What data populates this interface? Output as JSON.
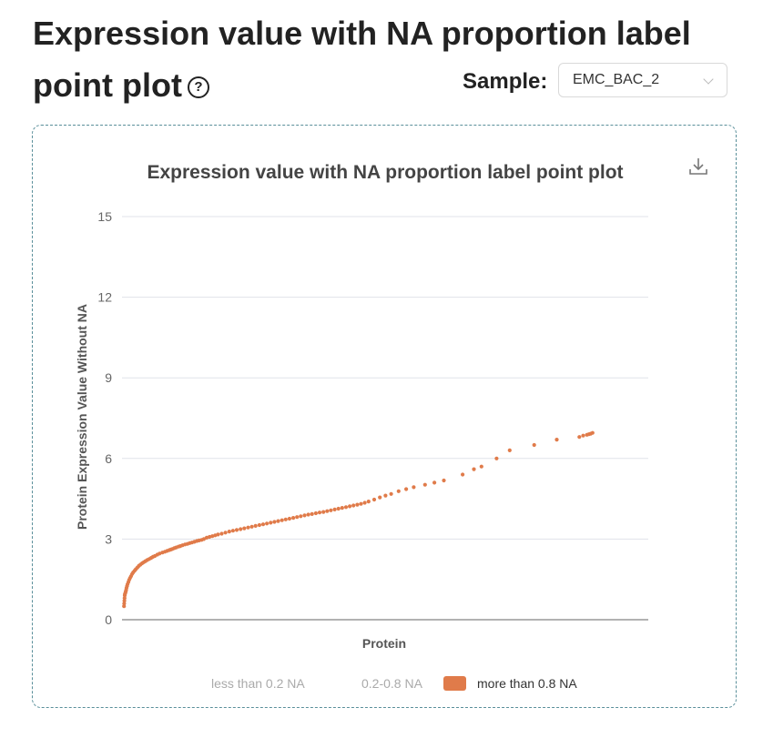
{
  "page": {
    "title": "Expression value with NA proportion label point plot",
    "help_symbol": "?"
  },
  "sample_selector": {
    "label": "Sample:",
    "selected": "EMC_BAC_2"
  },
  "chart_data": {
    "type": "scatter",
    "title": "Expression value with NA proportion label point plot",
    "xlabel": "Protein",
    "ylabel": "Protein Expression Value Without NA",
    "ylim": [
      0,
      15
    ],
    "yticks": [
      0,
      3,
      6,
      9,
      12,
      15
    ],
    "grid": true,
    "legend": {
      "placement": "bottom",
      "entries": [
        {
          "label": "less than 0.2 NA",
          "active": false,
          "color": "#cccccc"
        },
        {
          "label": "0.2-0.8 NA",
          "active": false,
          "color": "#cccccc"
        },
        {
          "label": "more than 0.8 NA",
          "active": true,
          "color": "#e07b4a"
        }
      ]
    },
    "series": [
      {
        "color": "#e07b4a",
        "x": [
          1,
          2,
          3,
          4,
          5,
          6,
          8,
          10,
          12,
          14,
          17,
          20,
          24,
          28,
          33,
          38,
          44,
          50,
          57,
          64,
          72,
          80,
          88,
          97,
          106,
          115,
          125,
          135,
          145,
          155,
          165,
          178,
          190,
          205,
          218,
          230,
          242,
          250,
          258,
          268,
          278,
          290,
          300,
          312,
          325,
          338,
          350,
          362,
          375,
          388,
          400,
          413,
          425,
          440,
          455,
          470,
          485,
          500,
          520,
          540,
          560,
          580,
          600,
          620,
          640,
          660,
          680,
          700,
          720,
          740,
          760,
          780,
          800,
          820,
          840,
          860,
          880,
          900,
          920,
          940,
          960,
          980,
          1000,
          1020,
          1040,
          1060,
          1080,
          1100,
          1120,
          1140,
          1160,
          1180,
          1200,
          1220,
          1240,
          1260,
          1280,
          1300,
          1330,
          1360,
          1390,
          1420,
          1460,
          1500,
          1540,
          1600,
          1650,
          1700,
          1800,
          1860,
          1900,
          1980,
          2050,
          2180,
          2300,
          2420,
          2440,
          2460,
          2470,
          2480,
          2490
        ],
        "y": [
          0.5,
          0.6,
          0.7,
          0.8,
          0.9,
          0.95,
          1.0,
          1.05,
          1.1,
          1.18,
          1.25,
          1.32,
          1.4,
          1.48,
          1.55,
          1.62,
          1.7,
          1.76,
          1.82,
          1.88,
          1.94,
          2.0,
          2.05,
          2.1,
          2.14,
          2.18,
          2.22,
          2.26,
          2.3,
          2.34,
          2.37,
          2.42,
          2.46,
          2.5,
          2.53,
          2.56,
          2.59,
          2.61,
          2.63,
          2.66,
          2.69,
          2.72,
          2.74,
          2.77,
          2.8,
          2.82,
          2.85,
          2.87,
          2.9,
          2.93,
          2.95,
          2.97,
          3.0,
          3.05,
          3.08,
          3.11,
          3.14,
          3.17,
          3.2,
          3.24,
          3.28,
          3.31,
          3.34,
          3.37,
          3.4,
          3.43,
          3.46,
          3.49,
          3.52,
          3.55,
          3.58,
          3.61,
          3.64,
          3.67,
          3.7,
          3.73,
          3.76,
          3.79,
          3.82,
          3.85,
          3.88,
          3.91,
          3.93,
          3.96,
          3.99,
          4.01,
          4.04,
          4.07,
          4.1,
          4.13,
          4.16,
          4.19,
          4.22,
          4.25,
          4.28,
          4.31,
          4.35,
          4.4,
          4.47,
          4.55,
          4.62,
          4.68,
          4.78,
          4.86,
          4.93,
          5.02,
          5.1,
          5.18,
          5.4,
          5.6,
          5.7,
          6.0,
          6.3,
          6.5,
          6.7,
          6.8,
          6.85,
          6.88,
          6.9,
          6.92,
          6.95
        ]
      }
    ]
  }
}
